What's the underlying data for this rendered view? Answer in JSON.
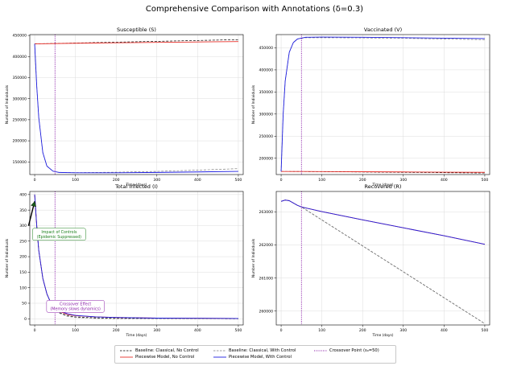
{
  "figure": {
    "title": "Comprehensive Comparison with Annotations (δ=0.3)"
  },
  "legend": {
    "items": [
      {
        "label": "Baseline: Classical, No Control",
        "color": "#000000",
        "dash": "dashed"
      },
      {
        "label": "Piecewise Model, No Control",
        "color": "#e8302a",
        "dash": "solid"
      },
      {
        "label": "Baseline: Classical, With Control",
        "color": "#7f7f7f",
        "dash": "dashed"
      },
      {
        "label": "Piecewise Model, With Control",
        "color": "#1f1fe0",
        "dash": "solid"
      },
      {
        "label": "Crossover Point (s₀=50)",
        "color": "#8b1fa8",
        "dash": "dotted"
      }
    ]
  },
  "chart_data": [
    {
      "type": "line",
      "title": "Susceptible (S)",
      "xlabel": "Time (days)",
      "ylabel": "Number of Individuals",
      "xlim": [
        -12,
        512
      ],
      "ylim": [
        120000,
        452000
      ],
      "xticks": [
        0,
        100,
        200,
        300,
        400,
        500
      ],
      "yticks": [
        150000,
        200000,
        250000,
        300000,
        350000,
        400000,
        450000
      ],
      "ytick_labels": [
        "150000",
        "200000",
        "250000",
        "300000",
        "350000",
        "400000",
        "450000"
      ],
      "grid": true,
      "crossover_x": 50,
      "series": [
        {
          "name": "Baseline: Classical, No Control",
          "color": "#000000",
          "dash": "dashed",
          "x": [
            0,
            100,
            200,
            300,
            400,
            500
          ],
          "y": [
            430000,
            432000,
            434000,
            436000,
            438000,
            440000
          ]
        },
        {
          "name": "Piecewise Model, No Control",
          "color": "#e8302a",
          "dash": "solid",
          "x": [
            0,
            100,
            200,
            300,
            400,
            500
          ],
          "y": [
            430000,
            431500,
            432500,
            433500,
            434500,
            435500
          ]
        },
        {
          "name": "Baseline: Classical, With Control",
          "color": "#7f7f7f",
          "dash": "dashed",
          "x": [
            0,
            5,
            10,
            20,
            30,
            45,
            60,
            100,
            200,
            300,
            400,
            500
          ],
          "y": [
            430000,
            330000,
            255000,
            172000,
            140000,
            128000,
            125000,
            124500,
            125500,
            127500,
            130500,
            134000
          ]
        },
        {
          "name": "Piecewise Model, With Control",
          "color": "#1f1fe0",
          "dash": "solid",
          "x": [
            0,
            5,
            10,
            20,
            30,
            45,
            60,
            100,
            200,
            300,
            400,
            500
          ],
          "y": [
            430000,
            330000,
            255000,
            172000,
            140000,
            128000,
            125000,
            124200,
            124200,
            125000,
            126200,
            127500
          ]
        }
      ]
    },
    {
      "type": "line",
      "title": "Vaccinated (V)",
      "xlabel": "Time (days)",
      "ylabel": "Number of Individuals",
      "xlim": [
        -12,
        512
      ],
      "ylim": [
        163000,
        480000
      ],
      "xticks": [
        0,
        100,
        200,
        300,
        400,
        500
      ],
      "yticks": [
        200000,
        250000,
        300000,
        350000,
        400000,
        450000
      ],
      "ytick_labels": [
        "200000",
        "250000",
        "300000",
        "350000",
        "400000",
        "450000"
      ],
      "grid": true,
      "crossover_x": 50,
      "series": [
        {
          "name": "Baseline: Classical, No Control",
          "color": "#000000",
          "dash": "dashed",
          "x": [
            0,
            100,
            200,
            300,
            400,
            500
          ],
          "y": [
            170000,
            169500,
            168800,
            168000,
            167200,
            166500
          ]
        },
        {
          "name": "Piecewise Model, No Control",
          "color": "#e8302a",
          "dash": "solid",
          "x": [
            0,
            100,
            200,
            300,
            400,
            500
          ],
          "y": [
            170000,
            169800,
            169400,
            168900,
            168400,
            168000
          ]
        },
        {
          "name": "Baseline: Classical, With Control",
          "color": "#7f7f7f",
          "dash": "dashed",
          "x": [
            0,
            5,
            10,
            20,
            30,
            40,
            60,
            100,
            200,
            300,
            400,
            500
          ],
          "y": [
            170000,
            300000,
            375000,
            440000,
            462000,
            470000,
            473000,
            473000,
            472500,
            471500,
            470000,
            468500
          ]
        },
        {
          "name": "Piecewise Model, With Control",
          "color": "#1f1fe0",
          "dash": "solid",
          "x": [
            0,
            5,
            10,
            20,
            30,
            40,
            60,
            100,
            200,
            300,
            400,
            500
          ],
          "y": [
            170000,
            300000,
            375000,
            440000,
            462000,
            470000,
            474000,
            474500,
            474000,
            473000,
            472000,
            471000
          ]
        }
      ]
    },
    {
      "type": "line",
      "title": "Total Infected (I)",
      "xlabel": "Time (days)",
      "ylabel": "Number of Individuals",
      "xlim": [
        -12,
        512
      ],
      "ylim": [
        -20,
        410
      ],
      "xticks": [
        0,
        100,
        200,
        300,
        400,
        500
      ],
      "yticks": [
        0,
        50,
        100,
        150,
        200,
        250,
        300,
        350,
        400
      ],
      "ytick_labels": [
        "0",
        "50",
        "100",
        "150",
        "200",
        "250",
        "300",
        "350",
        "400"
      ],
      "grid": true,
      "crossover_x": 50,
      "annotations": [
        {
          "text": [
            "Impact of Controls",
            "(Epidemic Suppressed)"
          ],
          "color": "#1a7f1a",
          "x": 60,
          "y": 272,
          "arrow_to": [
            0,
            378
          ],
          "arrow_from": [
            -15,
            300
          ]
        },
        {
          "text": [
            "Crossover Effect",
            "(Memory slows dynamics)"
          ],
          "color": "#8b1fa8",
          "x": 100,
          "y": 40
        }
      ],
      "series": [
        {
          "name": "Baseline: Classical, No Control",
          "color": "#000000",
          "dash": "dashed",
          "x": [
            0,
            5,
            10,
            20,
            30,
            40,
            50,
            60,
            80,
            100,
            150,
            200,
            300,
            500
          ],
          "y": [
            400,
            300,
            220,
            130,
            80,
            50,
            30,
            20,
            10,
            6,
            3,
            2,
            1,
            0
          ]
        },
        {
          "name": "Piecewise Model, No Control",
          "color": "#e8302a",
          "dash": "solid",
          "x": [
            0,
            5,
            10,
            20,
            30,
            40,
            50,
            60,
            80,
            100,
            150,
            200,
            300,
            500
          ],
          "y": [
            400,
            300,
            220,
            130,
            80,
            50,
            32,
            24,
            14,
            10,
            6,
            4,
            2,
            1
          ]
        },
        {
          "name": "Baseline: Classical, With Control",
          "color": "#7f7f7f",
          "dash": "dashed",
          "x": [
            0,
            5,
            10,
            20,
            30,
            40,
            50,
            60,
            80,
            100,
            150,
            200,
            300,
            500
          ],
          "y": [
            400,
            300,
            220,
            130,
            80,
            50,
            30,
            18,
            8,
            4,
            1,
            0,
            0,
            0
          ]
        },
        {
          "name": "Piecewise Model, With Control",
          "color": "#1f1fe0",
          "dash": "solid",
          "x": [
            0,
            5,
            10,
            20,
            30,
            40,
            50,
            60,
            80,
            100,
            150,
            200,
            300,
            500
          ],
          "y": [
            400,
            300,
            220,
            130,
            80,
            50,
            35,
            26,
            16,
            11,
            6,
            4,
            2,
            1
          ]
        }
      ]
    },
    {
      "type": "line",
      "title": "Recovered (R)",
      "xlabel": "Time (days)",
      "ylabel": "Number of Individuals",
      "xlim": [
        -12,
        512
      ],
      "ylim": [
        259580,
        263620
      ],
      "xticks": [
        0,
        100,
        200,
        300,
        400,
        500
      ],
      "yticks": [
        260000,
        261000,
        262000,
        263000
      ],
      "ytick_labels": [
        "260000",
        "261000",
        "262000",
        "263000"
      ],
      "grid": true,
      "crossover_x": 50,
      "series": [
        {
          "name": "Baseline: Classical, No Control",
          "color": "#000000",
          "dash": "dashed",
          "x": [
            0,
            10,
            20,
            30,
            40,
            50,
            500
          ],
          "y": [
            263320,
            263360,
            263340,
            263270,
            263200,
            263150,
            259620
          ]
        },
        {
          "name": "Piecewise Model, No Control",
          "color": "#e8302a",
          "dash": "solid",
          "x": [
            0,
            10,
            20,
            30,
            40,
            50,
            100,
            200,
            300,
            400,
            500
          ],
          "y": [
            263320,
            263360,
            263340,
            263270,
            263200,
            263150,
            263010,
            262760,
            262520,
            262280,
            262020
          ]
        },
        {
          "name": "Baseline: Classical, With Control",
          "color": "#7f7f7f",
          "dash": "dashed",
          "x": [
            0,
            10,
            20,
            30,
            40,
            50,
            500
          ],
          "y": [
            263320,
            263360,
            263340,
            263270,
            263200,
            263150,
            259620
          ]
        },
        {
          "name": "Piecewise Model, With Control",
          "color": "#1f1fe0",
          "dash": "solid",
          "x": [
            0,
            10,
            20,
            30,
            40,
            50,
            100,
            200,
            300,
            400,
            500
          ],
          "y": [
            263320,
            263360,
            263340,
            263270,
            263200,
            263150,
            263010,
            262760,
            262520,
            262280,
            262020
          ]
        }
      ]
    }
  ]
}
